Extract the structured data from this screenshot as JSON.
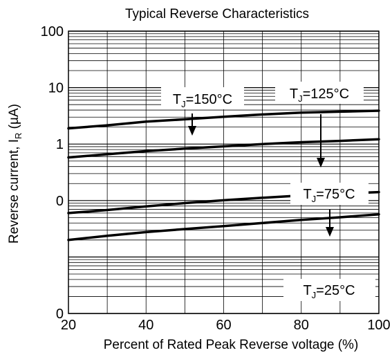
{
  "chart_data": {
    "type": "line",
    "title": "Typical Reverse Characteristics",
    "xlabel": "Percent of Rated Peak Reverse voltage (%)",
    "ylabel_main": "Reverse current, I",
    "ylabel_sub": "R",
    "ylabel_unit": " (µA)",
    "xlim": [
      20,
      100
    ],
    "ylim": [
      0.001,
      100
    ],
    "y_scale": "log",
    "grid": true,
    "x_ticks": [
      20,
      40,
      60,
      80,
      100
    ],
    "x_tick_labels": [
      "20",
      "40",
      "60",
      "80",
      "100"
    ],
    "y_ticks": [
      0.001,
      0.01,
      0.1,
      1,
      10,
      100
    ],
    "y_tick_labels": [
      "0",
      "",
      "0",
      "1",
      "10",
      "100"
    ],
    "series": [
      {
        "x": [
          20,
          30,
          40,
          50,
          60,
          70,
          80,
          90,
          100
        ],
        "y": [
          1.9,
          2.15,
          2.5,
          2.75,
          3.05,
          3.35,
          3.6,
          3.75,
          3.9
        ]
      },
      {
        "x": [
          20,
          30,
          40,
          50,
          60,
          70,
          80,
          90,
          100
        ],
        "y": [
          0.58,
          0.66,
          0.75,
          0.83,
          0.91,
          1.0,
          1.08,
          1.14,
          1.22
        ]
      },
      {
        "x": [
          20,
          30,
          40,
          50,
          60,
          70,
          80,
          90,
          100
        ],
        "y": [
          0.06,
          0.068,
          0.079,
          0.09,
          0.101,
          0.112,
          0.123,
          0.133,
          0.141
        ]
      },
      {
        "x": [
          20,
          30,
          40,
          50,
          60,
          70,
          80,
          90,
          100
        ],
        "y": [
          0.02,
          0.0238,
          0.0276,
          0.0313,
          0.0352,
          0.04,
          0.0455,
          0.0505,
          0.057
        ]
      }
    ],
    "annotations": [
      {
        "main": "T",
        "sub": "J",
        "rest": "=150°C"
      },
      {
        "main": "T",
        "sub": "J",
        "rest": "=125°C"
      },
      {
        "main": "T",
        "sub": "J",
        "rest": "=75°C"
      },
      {
        "main": "T",
        "sub": "J",
        "rest": "=25°C"
      }
    ]
  }
}
